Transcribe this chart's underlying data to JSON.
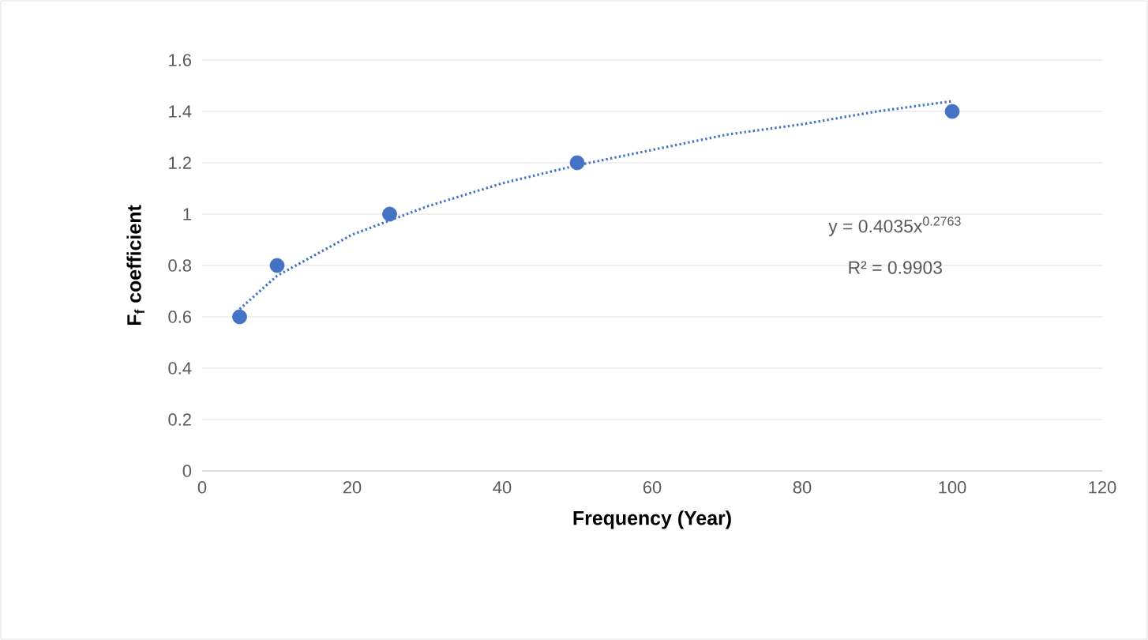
{
  "chart_data": {
    "type": "scatter",
    "xlabel": "Frequency (Year)",
    "ylabel": "F$_{f}$ coefficient",
    "xlim": [
      0,
      120
    ],
    "xticks": [
      0,
      20,
      40,
      60,
      80,
      100,
      120
    ],
    "ylim": [
      0,
      1.6
    ],
    "yticks": [
      0,
      0.2,
      0.4,
      0.6,
      0.8,
      1,
      1.2,
      1.4,
      1.6
    ],
    "grid": "y",
    "annotations": [
      "y = 0.4035x$^{0.2763}$",
      "R² = 0.9903"
    ],
    "series": [
      {
        "type": "scatter",
        "color": "#4472c4",
        "marker": "circle",
        "x": [
          5,
          10,
          25,
          50,
          100
        ],
        "values": [
          0.6,
          0.8,
          1.0,
          1.2,
          1.4
        ]
      },
      {
        "type": "line",
        "color": "#4472c4",
        "marker": "none",
        "line_style": "dotted",
        "x": [
          5,
          10,
          20,
          30,
          40,
          50,
          60,
          70,
          80,
          90,
          100
        ],
        "values": [
          0.63,
          0.76,
          0.92,
          1.03,
          1.12,
          1.19,
          1.25,
          1.31,
          1.35,
          1.4,
          1.44
        ]
      }
    ]
  }
}
